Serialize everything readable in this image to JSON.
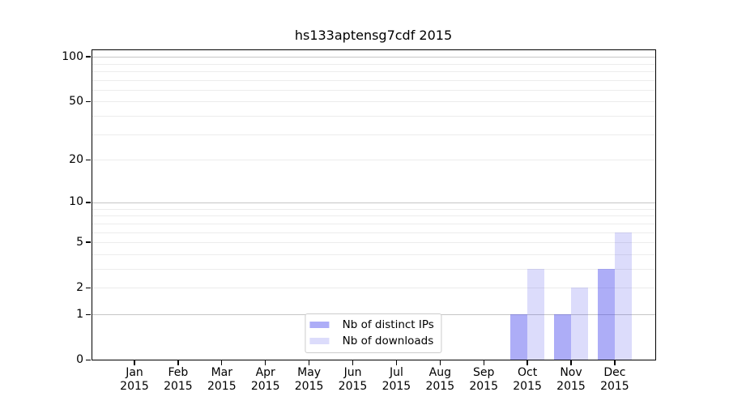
{
  "chart_data": {
    "type": "bar",
    "title": "hs133aptensg7cdf 2015",
    "categories": [
      "Jan",
      "Feb",
      "Mar",
      "Apr",
      "May",
      "Jun",
      "Jul",
      "Aug",
      "Sep",
      "Oct",
      "Nov",
      "Dec"
    ],
    "x_year_label": "2015",
    "series": [
      {
        "name": "Nb of distinct IPs",
        "color": "#3c3ceb",
        "alpha": 0.42,
        "values": [
          0,
          0,
          0,
          0,
          0,
          0,
          0,
          0,
          0,
          1,
          1,
          3
        ]
      },
      {
        "name": "Nb of downloads",
        "color": "#3c3ceb",
        "alpha": 0.18,
        "values": [
          0,
          0,
          0,
          0,
          0,
          0,
          0,
          0,
          0,
          3,
          2,
          6
        ]
      }
    ],
    "yscale": "log1p",
    "ylim": [
      0,
      110
    ],
    "yticks": [
      0,
      1,
      2,
      5,
      10,
      20,
      50,
      100
    ],
    "major_gridlines": [
      1,
      10,
      100
    ],
    "minor_gridlines": [
      2,
      3,
      4,
      5,
      6,
      7,
      8,
      9,
      20,
      30,
      40,
      50,
      60,
      70,
      80,
      90
    ],
    "grid": true,
    "legend_position": "lower center"
  },
  "colors": {
    "ips_bar_solid": "#adadf4",
    "downloads_bar_solid": "#dcdcfa",
    "major_grid": "#c6c6c6",
    "minor_grid": "#ececec",
    "axis": "#000000",
    "text": "#000000",
    "legend_border": "#cccccc",
    "background": "#ffffff"
  }
}
